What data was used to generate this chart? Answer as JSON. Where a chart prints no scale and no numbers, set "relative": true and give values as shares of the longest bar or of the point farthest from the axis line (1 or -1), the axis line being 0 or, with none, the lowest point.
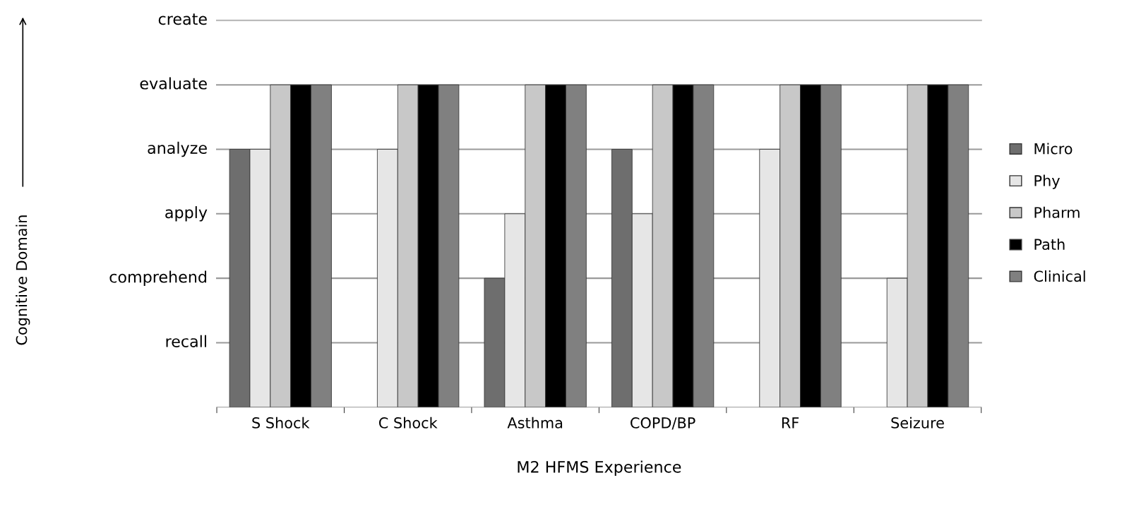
{
  "chart_data": {
    "type": "bar",
    "xlabel": "M2 HFMS Experience",
    "annotations": [
      "Cognitive Domain"
    ],
    "relative": true,
    "categories": [
      "S Shock",
      "C Shock",
      "Asthma",
      "COPD/BP",
      "RF",
      "Seizure"
    ],
    "series": [
      {
        "name": "Micro",
        "color": "#6e6e6e",
        "values": [
          0.8,
          null,
          0.4,
          0.8,
          null,
          null
        ]
      },
      {
        "name": "Phy",
        "color": "#e6e6e6",
        "values": [
          0.8,
          0.8,
          0.6,
          0.6,
          0.8,
          0.4
        ]
      },
      {
        "name": "Pharm",
        "color": "#c8c8c8",
        "values": [
          1,
          1,
          1,
          1,
          1,
          1
        ]
      },
      {
        "name": "Path",
        "color": "#000000",
        "values": [
          1,
          1,
          1,
          1,
          1,
          1
        ]
      },
      {
        "name": "Clinical",
        "color": "#808080",
        "values": [
          1,
          1,
          1,
          1,
          1,
          1
        ]
      }
    ],
    "ref_lines": [
      {
        "axis": "y",
        "value": 0.2,
        "label": "recall",
        "color": "#999999"
      },
      {
        "axis": "y",
        "value": 0.4,
        "label": "comprehend",
        "color": "#999999"
      },
      {
        "axis": "y",
        "value": 0.6,
        "label": "apply",
        "color": "#999999"
      },
      {
        "axis": "y",
        "value": 0.8,
        "label": "analyze",
        "color": "#999999"
      },
      {
        "axis": "y",
        "value": 1,
        "label": "evaluate",
        "color": "#999999"
      },
      {
        "axis": "y",
        "value": 1.2,
        "label": "create",
        "color": "#bbbbbb"
      }
    ],
    "legend": "right"
  }
}
